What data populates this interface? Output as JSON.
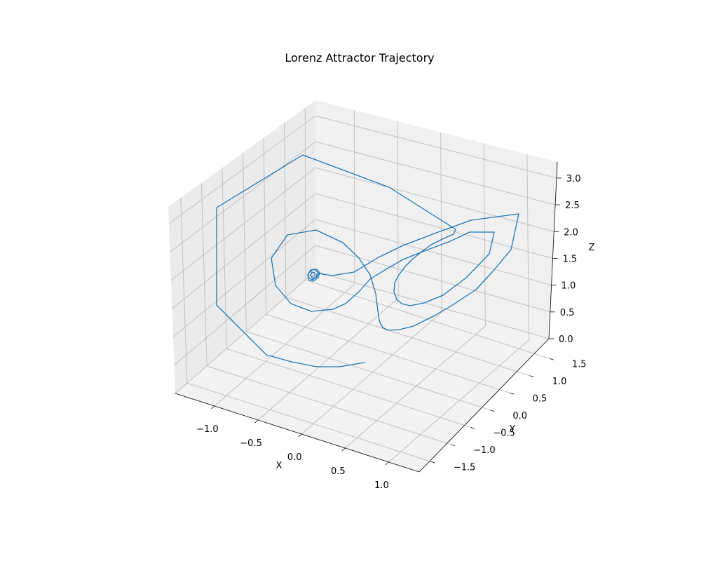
{
  "chart_data": {
    "type": "line",
    "projection": "3d",
    "title": "Lorenz Attractor Trajectory",
    "xlabel": "X",
    "ylabel": "Y",
    "zlabel": "Z",
    "xlim": [
      -1.45,
      1.35
    ],
    "ylim": [
      -1.8,
      1.75
    ],
    "zlim": [
      0.0,
      3.3
    ],
    "grid": true,
    "xticks": [
      -1.0,
      -0.5,
      0.0,
      0.5,
      1.0
    ],
    "yticks": [
      -1.5,
      -1.0,
      -0.5,
      0.0,
      0.5,
      1.0,
      1.5
    ],
    "zticks": [
      0.0,
      0.5,
      1.0,
      1.5,
      2.0,
      2.5,
      3.0
    ],
    "xtick_labels": [
      "−1.0",
      "−0.5",
      "0.0",
      "0.5",
      "1.0"
    ],
    "ytick_labels": [
      "−1.5",
      "−1.0",
      "−0.5",
      "0.0",
      "0.5",
      "1.0",
      "1.5"
    ],
    "ztick_labels": [
      "0.0",
      "0.5",
      "1.0",
      "1.5",
      "2.0",
      "2.5",
      "3.0"
    ],
    "line_color": "#1f77b4",
    "series": [
      {
        "projected_path": [
          [
            520,
            517
          ],
          [
            484,
            523
          ],
          [
            452,
            523
          ],
          [
            416,
            516
          ],
          [
            380,
            506
          ],
          [
            309,
            435
          ],
          [
            309,
            296
          ],
          [
            432,
            221
          ],
          [
            555,
            267
          ],
          [
            650,
            327
          ],
          [
            647,
            334
          ],
          [
            633,
            340
          ],
          [
            615,
            349
          ],
          [
            600,
            360
          ],
          [
            588,
            370
          ],
          [
            578,
            380
          ],
          [
            569,
            392
          ],
          [
            563,
            403
          ],
          [
            562,
            416
          ],
          [
            566,
            427
          ],
          [
            573,
            433
          ],
          [
            585,
            436
          ],
          [
            605,
            432
          ],
          [
            632,
            421
          ],
          [
            665,
            396
          ],
          [
            698,
            362
          ],
          [
            705,
            331
          ],
          [
            670,
            331
          ],
          [
            640,
            345
          ],
          [
            605,
            358
          ],
          [
            575,
            370
          ],
          [
            549,
            385
          ],
          [
            528,
            398
          ],
          [
            512,
            416
          ],
          [
            493,
            433
          ],
          [
            475,
            441
          ],
          [
            444,
            444
          ],
          [
            415,
            433
          ],
          [
            393,
            407
          ],
          [
            387,
            368
          ],
          [
            410,
            335
          ],
          [
            451,
            328
          ],
          [
            489,
            346
          ],
          [
            512,
            368
          ],
          [
            528,
            392
          ],
          [
            536,
            419
          ],
          [
            540,
            451
          ],
          [
            542,
            460
          ],
          [
            546,
            467
          ],
          [
            553,
            471
          ],
          [
            570,
            470
          ],
          [
            590,
            465
          ],
          [
            620,
            450
          ],
          [
            644,
            436
          ],
          [
            679,
            413
          ],
          [
            703,
            387
          ],
          [
            729,
            356
          ],
          [
            740,
            305
          ],
          [
            672,
            314
          ],
          [
            625,
            331
          ],
          [
            575,
            350
          ],
          [
            540,
            367
          ],
          [
            505,
            388
          ],
          [
            474,
            393
          ],
          [
            460,
            391
          ],
          [
            455,
            389
          ],
          [
            452,
            395
          ],
          [
            446,
            399
          ],
          [
            440,
            396
          ],
          [
            440,
            390
          ],
          [
            445,
            385
          ],
          [
            452,
            384
          ],
          [
            456,
            389
          ],
          [
            454,
            396
          ],
          [
            447,
            401
          ],
          [
            441,
            400
          ],
          [
            439,
            392
          ],
          [
            443,
            385
          ],
          [
            449,
            384
          ],
          [
            453,
            388
          ],
          [
            451,
            395
          ],
          [
            446,
            397
          ],
          [
            443,
            392
          ],
          [
            445,
            388
          ],
          [
            449,
            389
          ],
          [
            449,
            393
          ],
          [
            446,
            394
          ]
        ]
      }
    ]
  }
}
